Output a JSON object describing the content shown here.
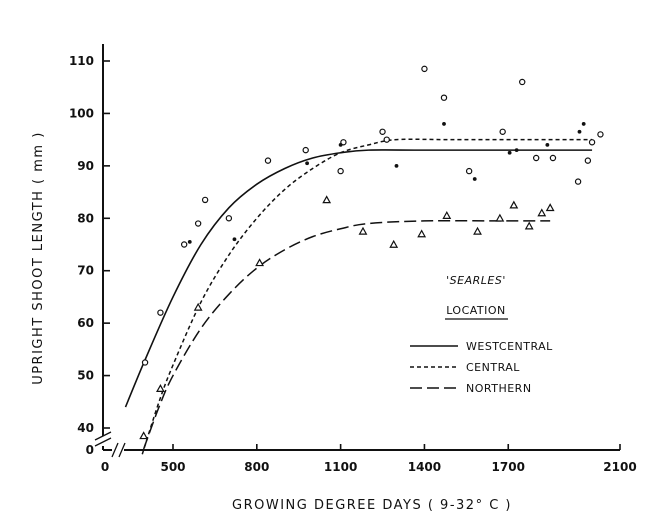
{
  "chart_data": {
    "type": "scatter",
    "title": "",
    "xlabel": "GROWING DEGREE DAYS ( 9-32° C )",
    "ylabel": "UPRIGHT SHOOT LENGTH ( mm )",
    "xlim": [
      200,
      2100
    ],
    "ylim": [
      35,
      110
    ],
    "x_origin_label": "0",
    "y_origin_label": "0",
    "axis_break": true,
    "x_ticks": [
      500,
      800,
      1100,
      1400,
      1700,
      2100
    ],
    "x_tick_labels": [
      "500",
      "800",
      "1100",
      "1400",
      "1700",
      "2100"
    ],
    "y_ticks": [
      40,
      50,
      60,
      70,
      80,
      90,
      100,
      110
    ],
    "y_tick_labels": [
      "40",
      "50",
      "60",
      "70",
      "80",
      "90",
      "100",
      "110"
    ],
    "legend": {
      "title": "'SEARLES'",
      "subtitle": "LOCATION",
      "position": "right"
    },
    "series": [
      {
        "name": "WESTCENTRAL",
        "marker": "open-circle",
        "line": "solid",
        "points": [
          [
            400,
            52.5
          ],
          [
            455,
            62
          ],
          [
            540,
            75
          ],
          [
            590,
            79
          ],
          [
            615,
            83.5
          ],
          [
            700,
            80
          ],
          [
            840,
            91
          ],
          [
            975,
            93
          ],
          [
            1100,
            89
          ],
          [
            1110,
            94.5
          ],
          [
            1250,
            96.5
          ],
          [
            1265,
            95
          ],
          [
            1400,
            108.5
          ],
          [
            1470,
            103
          ],
          [
            1560,
            89
          ],
          [
            1680,
            96.5
          ],
          [
            1750,
            106
          ],
          [
            1800,
            91.5
          ],
          [
            1860,
            91.5
          ],
          [
            1950,
            87
          ],
          [
            1985,
            91
          ],
          [
            2000,
            94.5
          ],
          [
            2030,
            96
          ]
        ],
        "curve": [
          [
            330,
            44
          ],
          [
            400,
            53
          ],
          [
            500,
            65
          ],
          [
            600,
            75
          ],
          [
            700,
            82
          ],
          [
            800,
            86.5
          ],
          [
            900,
            89.5
          ],
          [
            1000,
            91.5
          ],
          [
            1100,
            92.5
          ],
          [
            1200,
            93
          ],
          [
            1400,
            93
          ],
          [
            1700,
            93
          ],
          [
            2000,
            93
          ]
        ]
      },
      {
        "name": "CENTRAL",
        "marker": "filled-dot",
        "line": "dashed",
        "points": [
          [
            560,
            75.5
          ],
          [
            720,
            76
          ],
          [
            980,
            90.5
          ],
          [
            1100,
            94
          ],
          [
            1300,
            90
          ],
          [
            1470,
            98
          ],
          [
            1580,
            87.5
          ],
          [
            1705,
            92.5
          ],
          [
            1730,
            93
          ],
          [
            1840,
            94
          ],
          [
            1955,
            96.5
          ],
          [
            1970,
            98
          ]
        ],
        "curve": [
          [
            390,
            35
          ],
          [
            450,
            45
          ],
          [
            500,
            52
          ],
          [
            600,
            64
          ],
          [
            700,
            73
          ],
          [
            800,
            80
          ],
          [
            900,
            85.5
          ],
          [
            1000,
            89.5
          ],
          [
            1100,
            92.5
          ],
          [
            1200,
            94
          ],
          [
            1300,
            95
          ],
          [
            1500,
            95
          ],
          [
            1800,
            95
          ],
          [
            2000,
            95
          ]
        ]
      },
      {
        "name": "NORTHERN",
        "marker": "triangle",
        "line": "long-dash",
        "points": [
          [
            395,
            38.5
          ],
          [
            455,
            47.5
          ],
          [
            590,
            63
          ],
          [
            810,
            71.5
          ],
          [
            1050,
            83.5
          ],
          [
            1180,
            77.5
          ],
          [
            1290,
            75
          ],
          [
            1390,
            77
          ],
          [
            1480,
            80.5
          ],
          [
            1590,
            77.5
          ],
          [
            1670,
            80
          ],
          [
            1720,
            82.5
          ],
          [
            1775,
            78.5
          ],
          [
            1820,
            81
          ],
          [
            1850,
            82
          ]
        ],
        "curve": [
          [
            395,
            36
          ],
          [
            450,
            44
          ],
          [
            500,
            50
          ],
          [
            600,
            59
          ],
          [
            700,
            65.5
          ],
          [
            800,
            70.5
          ],
          [
            900,
            74
          ],
          [
            1000,
            76.5
          ],
          [
            1100,
            78
          ],
          [
            1200,
            79
          ],
          [
            1400,
            79.5
          ],
          [
            1700,
            79.5
          ],
          [
            1850,
            79.5
          ]
        ]
      }
    ]
  }
}
